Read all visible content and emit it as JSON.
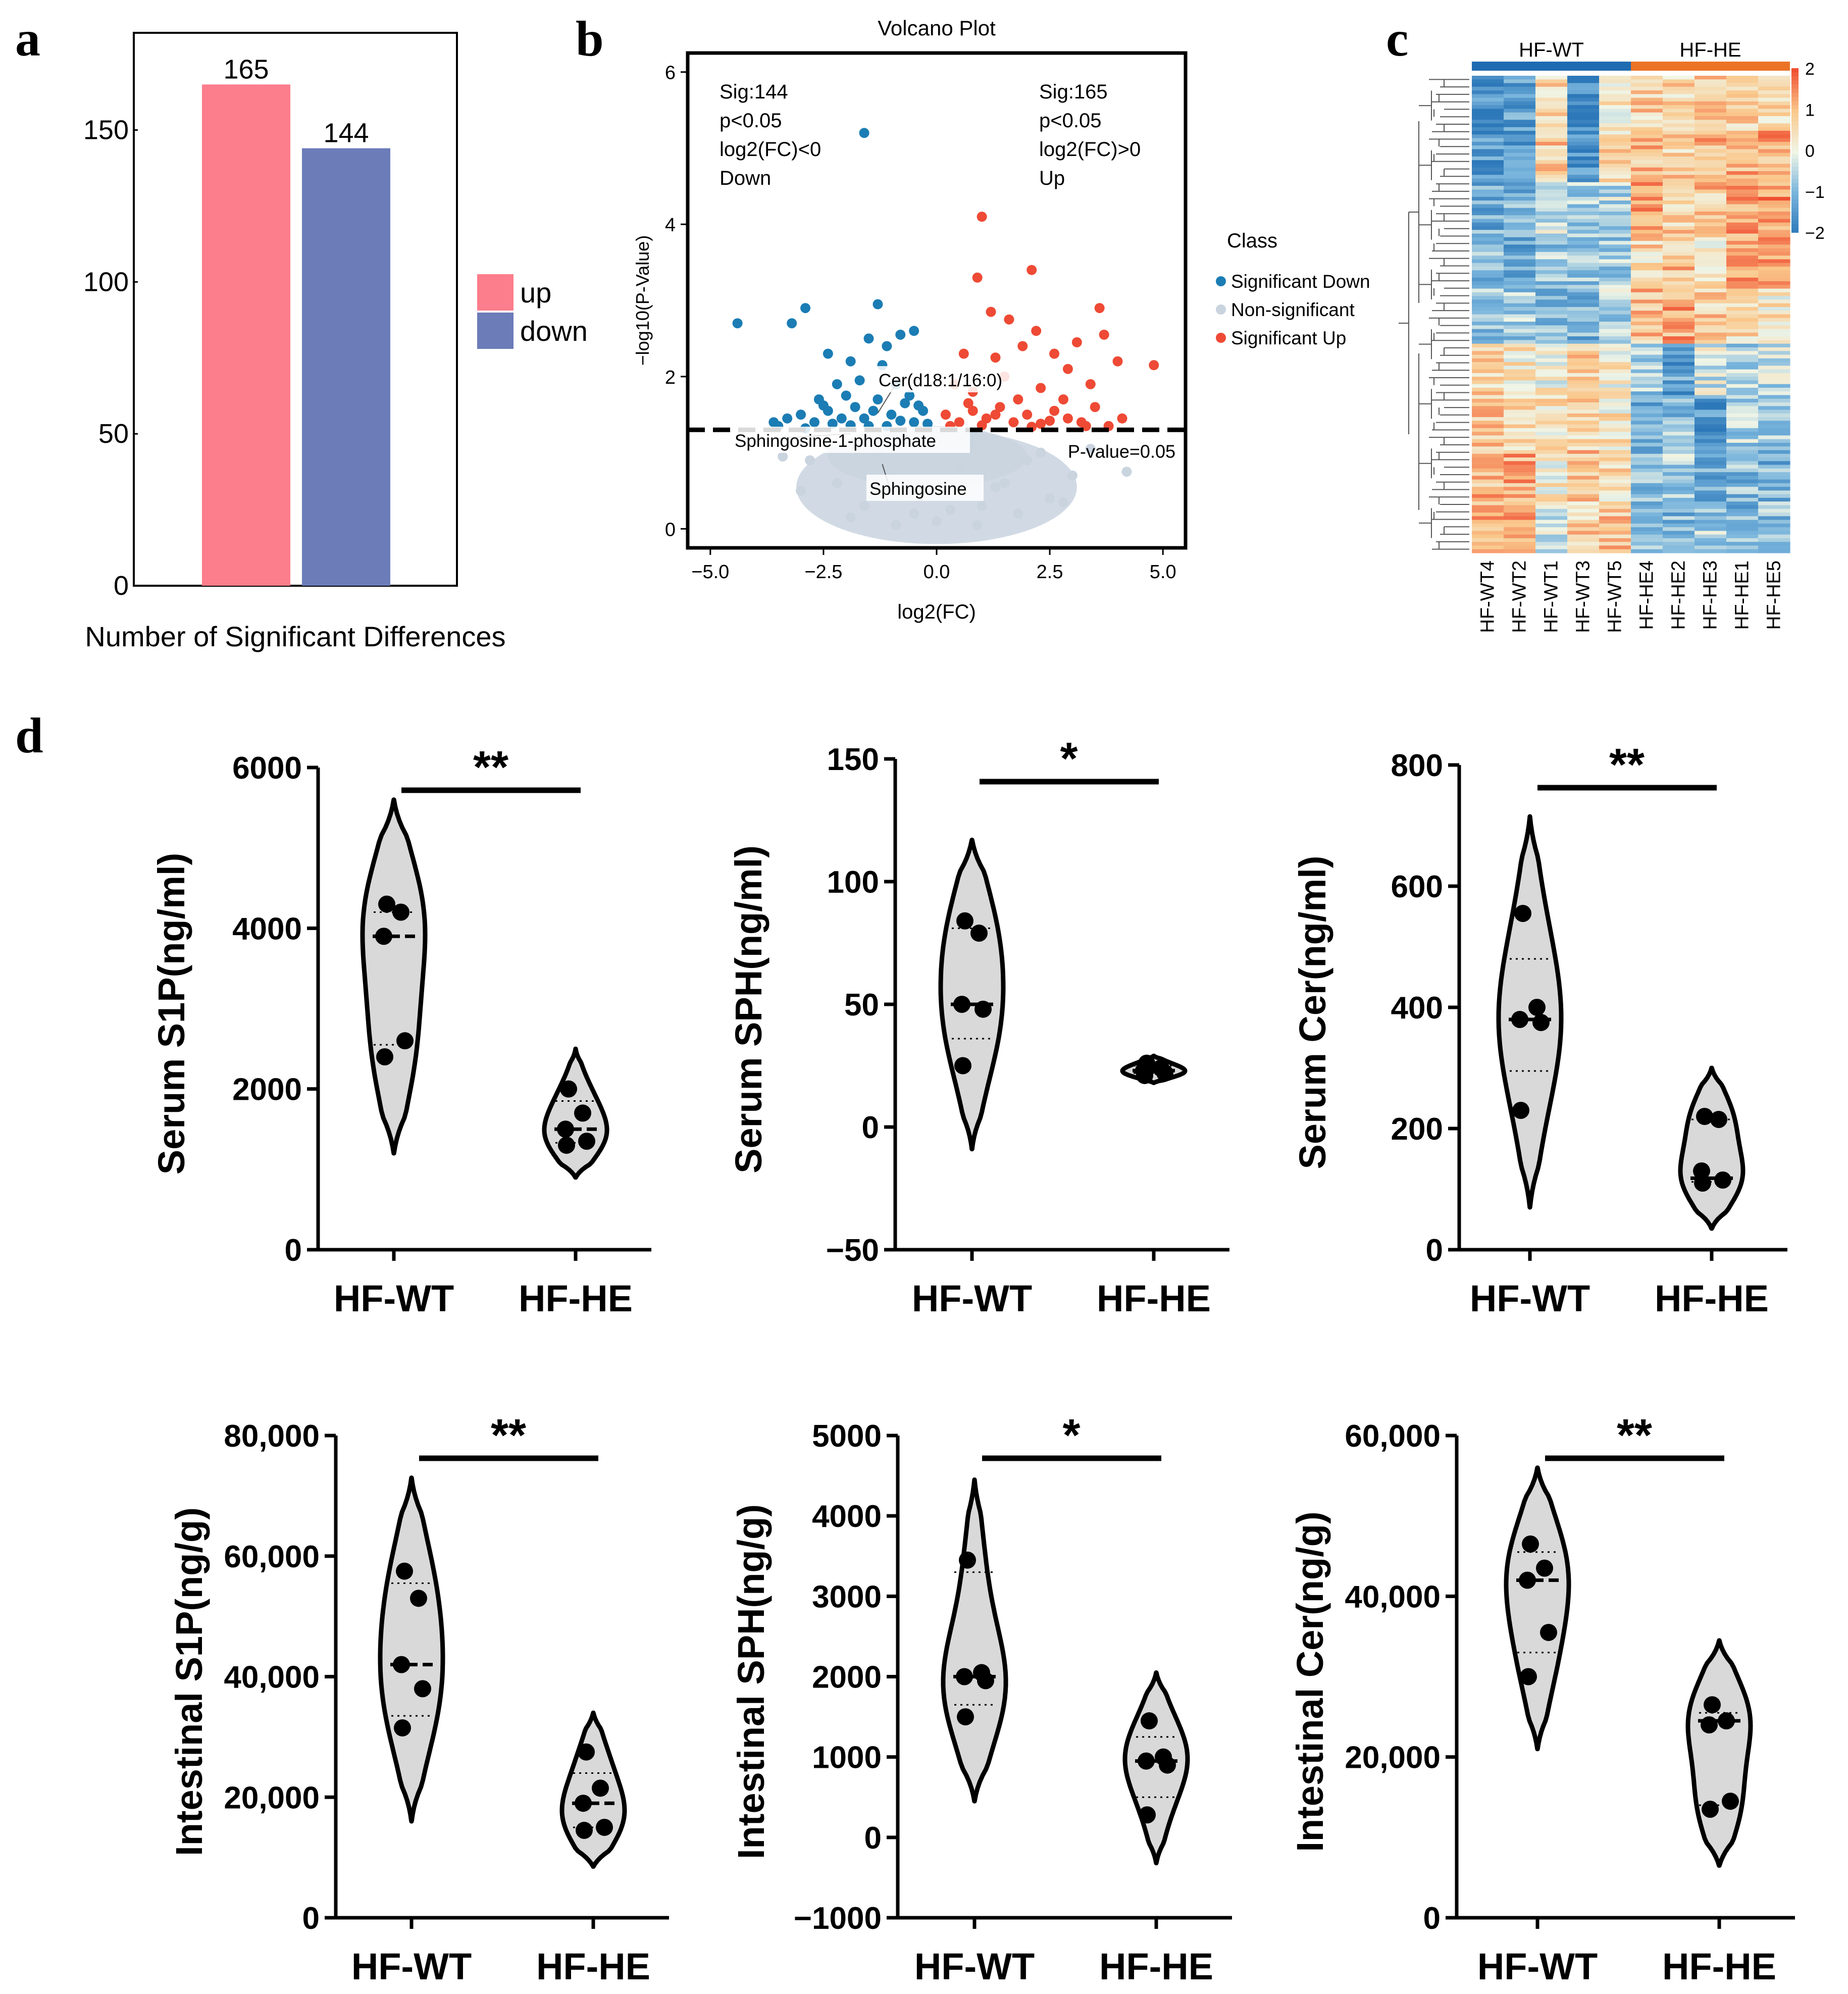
{
  "colors": {
    "up": "#fc7d8c",
    "down": "#6b7cb8",
    "sig_down": "#1b7db4",
    "non_sig": "#c9d4df",
    "sig_up": "#ee4a35",
    "violin_fill": "#d9d9d9",
    "hm_wt": "#1f6bb2",
    "hm_he": "#ec7326"
  },
  "panels": {
    "a": "a",
    "b": "b",
    "c": "c",
    "d": "d"
  },
  "chart_data": [
    {
      "id": "a",
      "type": "bar",
      "categories": [
        "up",
        "down"
      ],
      "values": [
        165,
        144
      ],
      "value_labels": [
        "165",
        "144"
      ],
      "yticks": [
        0,
        50,
        100,
        150
      ],
      "ytick_labels": [
        "0",
        "50",
        "100",
        "150"
      ],
      "ylim": [
        0,
        182
      ],
      "xlabel": "Number of Significant Differences",
      "legend": [
        {
          "name": "up",
          "color": "#fc7d8c"
        },
        {
          "name": "down",
          "color": "#6b7cb8"
        }
      ],
      "legend_position": "right"
    },
    {
      "id": "b",
      "type": "scatter",
      "title": "Volcano Plot",
      "xlabel": "log2(FC)",
      "ylabel": "−log10(P-Value)",
      "xlim": [
        -5.5,
        5.5
      ],
      "ylim": [
        -0.25,
        6.25
      ],
      "xticks": [
        -5,
        -2.5,
        0,
        2.5,
        5
      ],
      "xtick_labels": [
        "−5.0",
        "−2.5",
        "0.0",
        "2.5",
        "5.0"
      ],
      "yticks": [
        0,
        2,
        4,
        6
      ],
      "ytick_labels": [
        "0",
        "2",
        "4",
        "6"
      ],
      "threshold": 1.3,
      "threshold_label": "P-value=0.05",
      "annot_left": [
        "Sig:144",
        "p<0.05",
        "log2(FC)<0",
        "Down"
      ],
      "annot_right": [
        "Sig:165",
        "p<0.05",
        "log2(FC)>0",
        "Up"
      ],
      "legend_title": "Class",
      "legend": [
        "Significant Down",
        "Non-significant",
        "Significant Up"
      ],
      "legend_position": "right",
      "labels": [
        {
          "text": "Cer(d18:1/16:0)",
          "x": -1.3,
          "y": 1.52
        },
        {
          "text": "Sphingosine-1-phosphate",
          "x": -1.9,
          "y": 1.25
        },
        {
          "text": "Sphingosine",
          "x": -1.2,
          "y": 0.85
        }
      ],
      "sig_down_points": [
        [
          -4.4,
          2.7
        ],
        [
          -3.2,
          2.7
        ],
        [
          -2.9,
          2.9
        ],
        [
          -1.6,
          5.2
        ],
        [
          -1.3,
          2.95
        ],
        [
          -0.5,
          2.6
        ],
        [
          -2.4,
          2.3
        ],
        [
          -1.9,
          2.2
        ],
        [
          -1.5,
          2.5
        ],
        [
          -1.1,
          2.4
        ],
        [
          -0.8,
          2.55
        ],
        [
          -2.2,
          1.9
        ],
        [
          -1.7,
          1.95
        ],
        [
          -1.2,
          2.15
        ],
        [
          -0.9,
          1.9
        ],
        [
          -3.6,
          1.4
        ],
        [
          -3.3,
          1.45
        ],
        [
          -3.0,
          1.5
        ],
        [
          -2.7,
          1.4
        ],
        [
          -2.4,
          1.55
        ],
        [
          -2.1,
          1.45
        ],
        [
          -1.8,
          1.6
        ],
        [
          -1.5,
          1.35
        ],
        [
          -1.3,
          1.7
        ],
        [
          -1.0,
          1.5
        ],
        [
          -0.7,
          1.65
        ],
        [
          -0.5,
          1.4
        ],
        [
          -0.3,
          1.55
        ],
        [
          -3.5,
          1.35
        ],
        [
          -2.9,
          1.32
        ],
        [
          -2.6,
          1.7
        ],
        [
          -2.3,
          1.38
        ],
        [
          -2.0,
          1.75
        ],
        [
          -1.6,
          1.45
        ],
        [
          -1.1,
          1.35
        ],
        [
          -0.8,
          1.42
        ],
        [
          -0.6,
          1.75
        ],
        [
          -0.2,
          1.38
        ],
        [
          -2.5,
          1.62
        ],
        [
          -1.9,
          1.36
        ],
        [
          -1.4,
          1.55
        ],
        [
          -0.4,
          1.62
        ]
      ],
      "sig_up_points": [
        [
          1.0,
          4.1
        ],
        [
          2.1,
          3.4
        ],
        [
          0.9,
          3.3
        ],
        [
          3.6,
          2.9
        ],
        [
          4.8,
          2.15
        ],
        [
          1.2,
          2.85
        ],
        [
          1.6,
          2.75
        ],
        [
          2.2,
          2.6
        ],
        [
          3.1,
          2.45
        ],
        [
          3.7,
          2.55
        ],
        [
          0.6,
          2.3
        ],
        [
          1.3,
          2.25
        ],
        [
          1.9,
          2.4
        ],
        [
          2.6,
          2.3
        ],
        [
          2.9,
          2.1
        ],
        [
          3.4,
          1.9
        ],
        [
          4.0,
          2.2
        ],
        [
          0.4,
          1.9
        ],
        [
          0.8,
          1.8
        ],
        [
          1.5,
          2.0
        ],
        [
          2.3,
          1.85
        ],
        [
          0.2,
          1.5
        ],
        [
          0.5,
          1.4
        ],
        [
          0.8,
          1.55
        ],
        [
          1.1,
          1.45
        ],
        [
          1.4,
          1.6
        ],
        [
          1.7,
          1.4
        ],
        [
          2.0,
          1.5
        ],
        [
          2.3,
          1.38
        ],
        [
          2.6,
          1.55
        ],
        [
          2.9,
          1.45
        ],
        [
          3.2,
          1.4
        ],
        [
          3.5,
          1.6
        ],
        [
          3.8,
          1.35
        ],
        [
          0.3,
          1.35
        ],
        [
          0.7,
          1.65
        ],
        [
          1.0,
          1.36
        ],
        [
          1.3,
          1.5
        ],
        [
          1.8,
          1.7
        ],
        [
          2.1,
          1.34
        ],
        [
          2.5,
          1.42
        ],
        [
          2.8,
          1.7
        ],
        [
          3.3,
          1.35
        ],
        [
          4.1,
          1.45
        ]
      ],
      "non_sig_points": [
        [
          -2.8,
          0.9
        ],
        [
          -2.2,
          0.6
        ],
        [
          -1.6,
          0.3
        ],
        [
          -1.0,
          0.7
        ],
        [
          -0.5,
          0.2
        ],
        [
          0.0,
          0.5
        ],
        [
          0.5,
          0.8
        ],
        [
          1.0,
          0.3
        ],
        [
          1.5,
          0.6
        ],
        [
          2.0,
          0.9
        ],
        [
          2.5,
          0.4
        ],
        [
          3.0,
          0.7
        ],
        [
          -3.0,
          0.5
        ],
        [
          -2.4,
          1.1
        ],
        [
          -1.9,
          0.15
        ],
        [
          -1.3,
          1.0
        ],
        [
          -0.7,
          0.45
        ],
        [
          -0.2,
          1.05
        ],
        [
          0.3,
          0.25
        ],
        [
          0.8,
          1.1
        ],
        [
          1.3,
          0.55
        ],
        [
          1.8,
          0.2
        ],
        [
          2.3,
          1.0
        ],
        [
          2.8,
          0.35
        ],
        [
          4.2,
          0.75
        ],
        [
          -3.4,
          0.95
        ],
        [
          3.4,
          1.05
        ],
        [
          -0.9,
          0.05
        ],
        [
          0.9,
          0.05
        ],
        [
          0.0,
          0.1
        ]
      ]
    },
    {
      "id": "c",
      "type": "heatmap",
      "groups": [
        "HF-WT",
        "HF-HE"
      ],
      "columns": [
        "HF-WT4",
        "HF-WT2",
        "HF-WT1",
        "HF-WT3",
        "HF-WT5",
        "HF-HE4",
        "HF-HE2",
        "HF-HE3",
        "HF-HE1",
        "HF-HE5"
      ],
      "scale_ticks": [
        2,
        1,
        0,
        -1,
        -2
      ],
      "scale_tick_labels": [
        "2",
        "1",
        "0",
        "−1",
        "−2"
      ],
      "vmin": -2,
      "vmax": 2,
      "row_band_means": [
        [
          -1.6,
          -1.2,
          0.6,
          -1.8,
          0.4,
          0.7,
          0.6,
          0.8,
          0.8,
          0.5
        ],
        [
          -1.4,
          -1.3,
          0.8,
          -1.6,
          0.6,
          0.9,
          0.7,
          1.0,
          1.1,
          1.2
        ],
        [
          -1.1,
          -1.0,
          -0.3,
          -0.6,
          -0.4,
          1.2,
          0.8,
          0.9,
          1.3,
          1.4
        ],
        [
          -0.9,
          -1.1,
          -0.7,
          -0.8,
          -0.6,
          0.6,
          0.9,
          0.5,
          1.2,
          1.1
        ],
        [
          -0.8,
          -0.6,
          -0.9,
          -1.0,
          -0.5,
          0.9,
          1.2,
          0.8,
          0.5,
          0.4
        ],
        [
          0.6,
          0.4,
          0.2,
          0.8,
          0.3,
          -0.6,
          -1.3,
          -0.2,
          -0.5,
          -0.4
        ],
        [
          0.8,
          0.7,
          0.5,
          0.6,
          0.4,
          -1.1,
          -0.8,
          -1.4,
          -0.6,
          -0.7
        ],
        [
          1.0,
          1.2,
          0.3,
          0.9,
          0.6,
          -0.8,
          -0.6,
          -1.2,
          -0.9,
          -1.0
        ],
        [
          1.2,
          1.3,
          -0.2,
          0.7,
          0.8,
          -0.9,
          -0.9,
          -0.6,
          -1.0,
          -0.8
        ]
      ]
    },
    {
      "id": "d1",
      "type": "violin",
      "ylabel": "Serum S1P(ng/ml)",
      "categories": [
        "HF-WT",
        "HF-HE"
      ],
      "sig": "**",
      "ylim": [
        0,
        6000
      ],
      "yticks": [
        0,
        2000,
        4000,
        6000
      ],
      "ytick_labels": [
        "0",
        "2000",
        "4000",
        "6000"
      ],
      "series": [
        {
          "name": "HF-WT",
          "points": [
            4300,
            4200,
            3900,
            2600,
            2400
          ],
          "median": 3900,
          "q1": 2550,
          "q3": 4200,
          "range": [
            1200,
            5600
          ]
        },
        {
          "name": "HF-HE",
          "points": [
            2000,
            1700,
            1500,
            1350,
            1300
          ],
          "median": 1500,
          "q1": 1330,
          "q3": 1850,
          "range": [
            900,
            2500
          ]
        }
      ]
    },
    {
      "id": "d2",
      "type": "violin",
      "ylabel": "Serum SPH(ng/ml)",
      "categories": [
        "HF-WT",
        "HF-HE"
      ],
      "sig": "*",
      "ylim": [
        -50,
        150
      ],
      "yticks": [
        -50,
        0,
        50,
        100,
        150
      ],
      "ytick_labels": [
        "−50",
        "0",
        "50",
        "100",
        "150"
      ],
      "series": [
        {
          "name": "HF-WT",
          "points": [
            84,
            79,
            50,
            48,
            25
          ],
          "median": 50,
          "q1": 36,
          "q3": 81,
          "range": [
            -9,
            117
          ]
        },
        {
          "name": "HF-HE",
          "points": [
            26,
            24,
            23,
            22,
            21
          ],
          "median": 23,
          "q1": 22,
          "q3": 25,
          "range": [
            18,
            29
          ]
        }
      ]
    },
    {
      "id": "d3",
      "type": "violin",
      "ylabel": "Serum Cer(ng/ml)",
      "categories": [
        "HF-WT",
        "HF-HE"
      ],
      "sig": "**",
      "ylim": [
        0,
        800
      ],
      "yticks": [
        0,
        200,
        400,
        600,
        800
      ],
      "ytick_labels": [
        "0",
        "200",
        "400",
        "600",
        "800"
      ],
      "series": [
        {
          "name": "HF-WT",
          "points": [
            555,
            400,
            380,
            375,
            230
          ],
          "median": 380,
          "q1": 295,
          "q3": 480,
          "range": [
            70,
            715
          ]
        },
        {
          "name": "HF-HE",
          "points": [
            220,
            215,
            130,
            115,
            110
          ],
          "median": 118,
          "q1": 112,
          "q3": 215,
          "range": [
            35,
            300
          ]
        }
      ]
    },
    {
      "id": "d4",
      "type": "violin",
      "ylabel": "Intestinal S1P(ng/g)",
      "categories": [
        "HF-WT",
        "HF-HE"
      ],
      "sig": "**",
      "ylim": [
        0,
        80000
      ],
      "yticks": [
        0,
        20000,
        40000,
        60000,
        80000
      ],
      "ytick_labels": [
        "0",
        "20,000",
        "40,000",
        "60,000",
        "80,000"
      ],
      "series": [
        {
          "name": "HF-WT",
          "points": [
            57500,
            53000,
            42000,
            38000,
            31500
          ],
          "median": 42000,
          "q1": 33500,
          "q3": 55500,
          "range": [
            16000,
            73000
          ]
        },
        {
          "name": "HF-HE",
          "points": [
            27500,
            21500,
            19000,
            15000,
            14500
          ],
          "median": 19000,
          "q1": 15000,
          "q3": 24000,
          "range": [
            8500,
            34000
          ]
        }
      ]
    },
    {
      "id": "d5",
      "type": "violin",
      "ylabel": "Intestinal SPH(ng/g)",
      "categories": [
        "HF-WT",
        "HF-HE"
      ],
      "sig": "*",
      "ylim": [
        -1000,
        5000
      ],
      "yticks": [
        -1000,
        0,
        1000,
        2000,
        3000,
        4000,
        5000
      ],
      "ytick_labels": [
        "−1000",
        "0",
        "1000",
        "2000",
        "3000",
        "4000",
        "5000"
      ],
      "series": [
        {
          "name": "HF-WT",
          "points": [
            3450,
            2050,
            2000,
            1950,
            1500
          ],
          "median": 2000,
          "q1": 1650,
          "q3": 3300,
          "range": [
            450,
            4450
          ]
        },
        {
          "name": "HF-HE",
          "points": [
            1450,
            1000,
            950,
            900,
            280
          ],
          "median": 950,
          "q1": 500,
          "q3": 1250,
          "range": [
            -320,
            2050
          ]
        }
      ]
    },
    {
      "id": "d6",
      "type": "violin",
      "ylabel": "Intestinal Cer(ng/g)",
      "categories": [
        "HF-WT",
        "HF-HE"
      ],
      "sig": "**",
      "ylim": [
        0,
        60000
      ],
      "yticks": [
        0,
        20000,
        40000,
        60000
      ],
      "ytick_labels": [
        "0",
        "20,000",
        "40,000",
        "60,000"
      ],
      "series": [
        {
          "name": "HF-WT",
          "points": [
            46500,
            43500,
            42000,
            35500,
            30000
          ],
          "median": 42000,
          "q1": 33000,
          "q3": 45500,
          "range": [
            21000,
            56000
          ]
        },
        {
          "name": "HF-HE",
          "points": [
            26500,
            24500,
            24000,
            14500,
            13500
          ],
          "median": 24500,
          "q1": 14000,
          "q3": 25500,
          "range": [
            6500,
            34500
          ]
        }
      ]
    }
  ]
}
